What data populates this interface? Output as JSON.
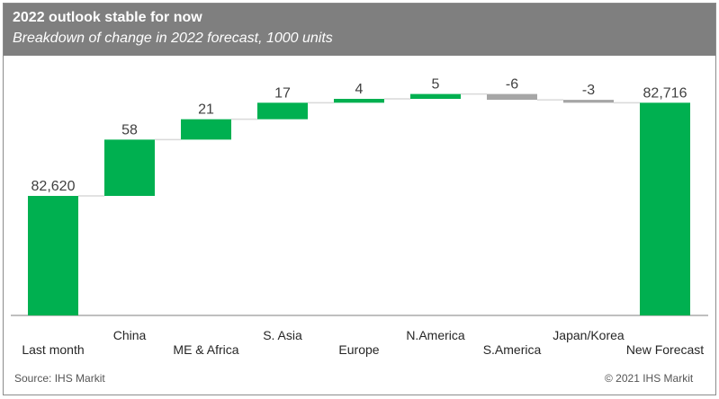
{
  "header": {
    "title": "2022 outlook stable for now",
    "subtitle": "Breakdown of change in 2022 forecast, 1000 units"
  },
  "footer": {
    "source": "Source: IHS Markit",
    "copyright": "© 2021 IHS Markit"
  },
  "colors": {
    "increase": "#00b050",
    "decrease": "#a6a6a6",
    "total": "#00b050",
    "header_bg": "#7f7f7f",
    "connector": "#d9d9d9"
  },
  "chart_data": {
    "type": "bar",
    "subtype": "waterfall",
    "categories": [
      "Last month",
      "China",
      "ME & Africa",
      "S. Asia",
      "Europe",
      "N.America",
      "S.America",
      "Japan/Korea",
      "New Forecast"
    ],
    "values": [
      82620,
      58,
      21,
      17,
      4,
      5,
      -6,
      -3,
      82716
    ],
    "value_labels": [
      "82,620",
      "58",
      "21",
      "17",
      "4",
      "5",
      "-6",
      "-3",
      "82,716"
    ],
    "kinds": [
      "total",
      "delta",
      "delta",
      "delta",
      "delta",
      "delta",
      "delta",
      "delta",
      "total"
    ],
    "title": "2022 outlook stable for now",
    "subtitle": "Breakdown of change in 2022 forecast, 1000 units",
    "grid": false,
    "legend": "none"
  }
}
